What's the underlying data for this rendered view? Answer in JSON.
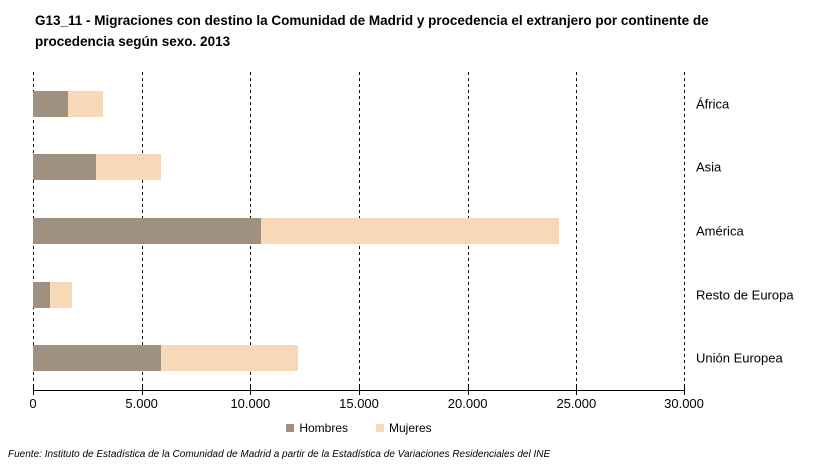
{
  "page": {
    "source": "Fuente: Instituto de Estadística de la Comunidad de Madrid a partir de la Estadística de Variaciones Residenciales del INE"
  },
  "colors": {
    "hombres": "#a09080",
    "mujeres": "#f7d9b7",
    "axis": "#000000",
    "grid": "#000000",
    "background": "#ffffff"
  },
  "chart_data": {
    "type": "bar",
    "orientation": "horizontal",
    "stacked": true,
    "title": "G13_11 - Migraciones con destino la Comunidad de Madrid y procedencia el extranjero por continente de procedencia según sexo. 2013",
    "categories": [
      "África",
      "Asia",
      "América",
      "Resto de Europa",
      "Unión Europea"
    ],
    "series": [
      {
        "name": "Hombres",
        "color": "#a09080",
        "values": [
          1600,
          2900,
          10500,
          800,
          5900
        ]
      },
      {
        "name": "Mujeres",
        "color": "#f7d9b7",
        "values": [
          1600,
          3000,
          13700,
          1000,
          6300
        ]
      }
    ],
    "totals": [
      3200,
      5900,
      24200,
      1800,
      12200
    ],
    "xlabel": "",
    "ylabel": "",
    "xlim": [
      0,
      30000
    ],
    "x_ticks": [
      {
        "value": 0,
        "label": "0"
      },
      {
        "value": 5000,
        "label": "5.000"
      },
      {
        "value": 10000,
        "label": "10.000"
      },
      {
        "value": 15000,
        "label": "15.000"
      },
      {
        "value": 20000,
        "label": "20.000"
      },
      {
        "value": 25000,
        "label": "25.000"
      },
      {
        "value": 30000,
        "label": "30.000"
      }
    ],
    "grid": "vertical-dashed",
    "legend_position": "bottom-center"
  }
}
